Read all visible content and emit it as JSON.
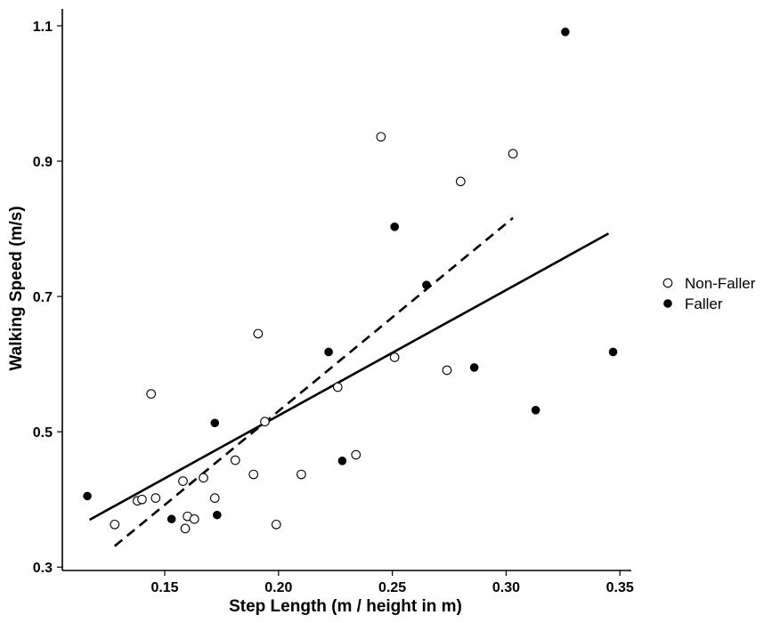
{
  "chart_data": {
    "type": "scatter",
    "title": "",
    "xlabel": "Step Length (m / height in m)",
    "ylabel": "Walking Speed (m/s)",
    "xlim": [
      0.105,
      0.355
    ],
    "ylim": [
      0.295,
      1.125
    ],
    "x_ticks": [
      0.15,
      0.2,
      0.25,
      0.3,
      0.35
    ],
    "x_tick_labels": [
      "0.15",
      "0.20",
      "0.25",
      "0.30",
      "0.35"
    ],
    "y_ticks": [
      0.3,
      0.5,
      0.7,
      0.9,
      1.1
    ],
    "y_tick_labels": [
      "0.3",
      "0.5",
      "0.7",
      "0.9",
      "1.1"
    ],
    "grid": false,
    "legend_position": "right",
    "series": [
      {
        "name": "Non-Faller",
        "marker": "open-circle",
        "color": "#000000",
        "points": [
          {
            "x": 0.128,
            "y": 0.363
          },
          {
            "x": 0.138,
            "y": 0.398
          },
          {
            "x": 0.14,
            "y": 0.4
          },
          {
            "x": 0.144,
            "y": 0.556
          },
          {
            "x": 0.146,
            "y": 0.402
          },
          {
            "x": 0.158,
            "y": 0.427
          },
          {
            "x": 0.159,
            "y": 0.357
          },
          {
            "x": 0.16,
            "y": 0.375
          },
          {
            "x": 0.163,
            "y": 0.371
          },
          {
            "x": 0.167,
            "y": 0.432
          },
          {
            "x": 0.172,
            "y": 0.402
          },
          {
            "x": 0.181,
            "y": 0.458
          },
          {
            "x": 0.189,
            "y": 0.437
          },
          {
            "x": 0.191,
            "y": 0.645
          },
          {
            "x": 0.194,
            "y": 0.515
          },
          {
            "x": 0.199,
            "y": 0.363
          },
          {
            "x": 0.21,
            "y": 0.437
          },
          {
            "x": 0.226,
            "y": 0.566
          },
          {
            "x": 0.234,
            "y": 0.466
          },
          {
            "x": 0.245,
            "y": 0.936
          },
          {
            "x": 0.251,
            "y": 0.61
          },
          {
            "x": 0.274,
            "y": 0.591
          },
          {
            "x": 0.28,
            "y": 0.87
          },
          {
            "x": 0.303,
            "y": 0.911
          }
        ]
      },
      {
        "name": "Faller",
        "marker": "filled-circle",
        "color": "#000000",
        "points": [
          {
            "x": 0.116,
            "y": 0.405
          },
          {
            "x": 0.153,
            "y": 0.371
          },
          {
            "x": 0.172,
            "y": 0.513
          },
          {
            "x": 0.173,
            "y": 0.377
          },
          {
            "x": 0.222,
            "y": 0.618
          },
          {
            "x": 0.228,
            "y": 0.457
          },
          {
            "x": 0.251,
            "y": 0.803
          },
          {
            "x": 0.265,
            "y": 0.717
          },
          {
            "x": 0.286,
            "y": 0.595
          },
          {
            "x": 0.313,
            "y": 0.532
          },
          {
            "x": 0.326,
            "y": 1.091
          },
          {
            "x": 0.347,
            "y": 0.618
          }
        ]
      }
    ],
    "fit_lines": [
      {
        "style": "solid",
        "color": "#000000",
        "x": [
          0.117,
          0.345
        ],
        "y": [
          0.37,
          0.793
        ]
      },
      {
        "style": "dashed",
        "color": "#000000",
        "x": [
          0.128,
          0.303
        ],
        "y": [
          0.331,
          0.816
        ]
      }
    ]
  }
}
